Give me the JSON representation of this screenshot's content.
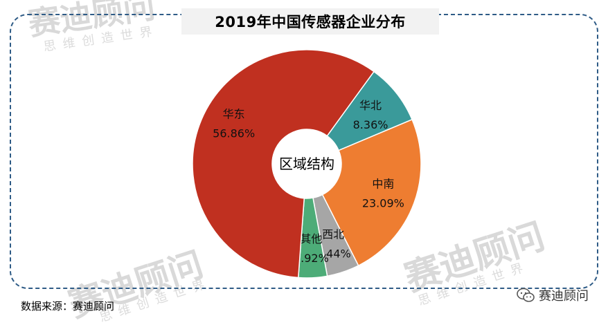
{
  "title": "2019年中国传感器企业分布",
  "source_text": "数据来源：赛迪顾问",
  "brand": {
    "name": "赛迪顾问",
    "icon": "wechat-icon"
  },
  "watermark": {
    "main": "赛迪顾问",
    "sub": "思维创造世界"
  },
  "chart_data": {
    "type": "pie",
    "donut": true,
    "center_label": "区域结构",
    "title": "2019年中国传感器企业分布",
    "slices": [
      {
        "label": "华北",
        "value": 8.36,
        "display": "8.36%",
        "color": "#3a9a9a"
      },
      {
        "label": "中南",
        "value": 23.09,
        "display": "23.09%",
        "color": "#ee7d31"
      },
      {
        "label": "西北",
        "value": 4.44,
        "display": "4.44%",
        "color": "#a6a6a6"
      },
      {
        "label": "其他",
        "value": 3.92,
        "display": "3.92%",
        "color": "#4dac78"
      },
      {
        "label": "华东",
        "value": 56.86,
        "display": "56.86%",
        "color": "#c03020"
      }
    ]
  }
}
